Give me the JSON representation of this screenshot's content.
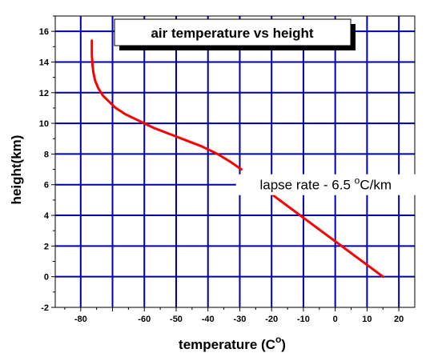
{
  "chart_data": {
    "type": "line",
    "title": "air temperature vs height",
    "xlabel": "temperature (C",
    "xlabel_sup": "o",
    "xlabel_close": ")",
    "ylabel": "height(km)",
    "xlim": [
      -88,
      25
    ],
    "ylim": [
      -2,
      17
    ],
    "x_ticks": [
      -80,
      -70,
      -60,
      -50,
      -40,
      -30,
      -20,
      -10,
      0,
      10,
      20
    ],
    "x_tick_labels": [
      "-80",
      "",
      "-60",
      "-50",
      "-40",
      "-30",
      "-20",
      "-10",
      "0",
      "10",
      "20"
    ],
    "y_ticks": [
      -2,
      0,
      2,
      4,
      6,
      8,
      10,
      12,
      14,
      16
    ],
    "y_tick_labels": [
      "-2",
      "0",
      "2",
      "4",
      "6",
      "8",
      "10",
      "12",
      "14",
      "16"
    ],
    "grid": true,
    "grid_color": "#0000aa",
    "annotation": {
      "main": "lapse rate - 6.5 ",
      "sup": "o",
      "rest": "C/km",
      "x": -3,
      "y": 6
    },
    "series": [
      {
        "color": "#ff0000",
        "x": [
          -76.5,
          -76.5,
          -76.3,
          -76,
          -75.5,
          -74.5,
          -73,
          -71,
          -69,
          -66,
          -62,
          -57,
          -52,
          -47,
          -42,
          -37,
          -33,
          -29.5
        ],
        "y": [
          15.4,
          14.5,
          13.8,
          13.3,
          12.8,
          12.3,
          11.8,
          11.4,
          11.0,
          10.6,
          10.2,
          9.7,
          9.3,
          8.9,
          8.5,
          8.0,
          7.5,
          7.0
        ]
      },
      {
        "color": "#ff0000",
        "x": [
          -19.5,
          15
        ],
        "y": [
          5.3,
          0
        ]
      }
    ]
  }
}
